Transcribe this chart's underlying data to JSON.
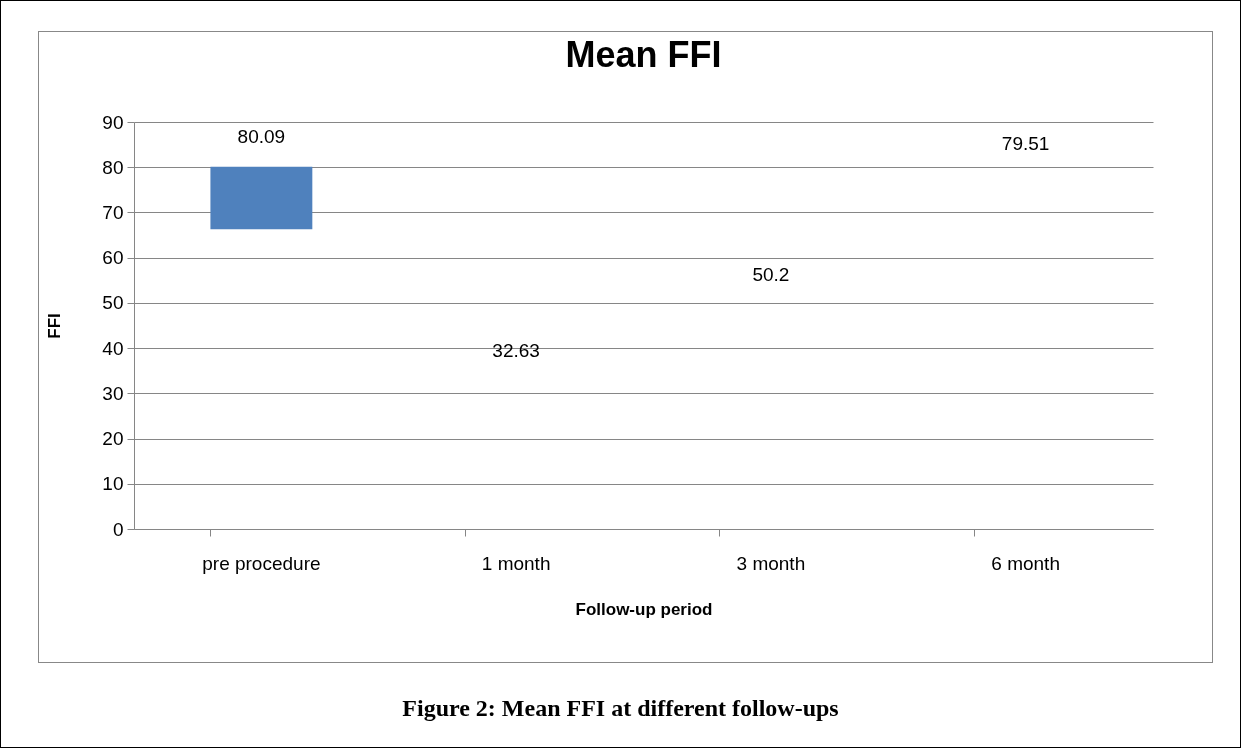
{
  "chart_data": {
    "type": "bar",
    "title": "Mean FFI",
    "xlabel": "Follow-up period",
    "ylabel": "FFI",
    "categories": [
      "pre procedure",
      "1 month",
      "3 month",
      "6 month"
    ],
    "values": [
      13.8,
      null,
      null,
      null
    ],
    "base": [
      66.3,
      null,
      null,
      null
    ],
    "color": "#4f81bd",
    "ylim": [
      0,
      90
    ],
    "yticks": [
      0,
      10,
      20,
      30,
      40,
      50,
      60,
      70,
      80,
      90
    ],
    "grid": "y",
    "annotations": [
      "80.09",
      "32.63",
      "50.2",
      "79.51",
      "Figure 2: Mean FFI at different follow-ups"
    ]
  }
}
